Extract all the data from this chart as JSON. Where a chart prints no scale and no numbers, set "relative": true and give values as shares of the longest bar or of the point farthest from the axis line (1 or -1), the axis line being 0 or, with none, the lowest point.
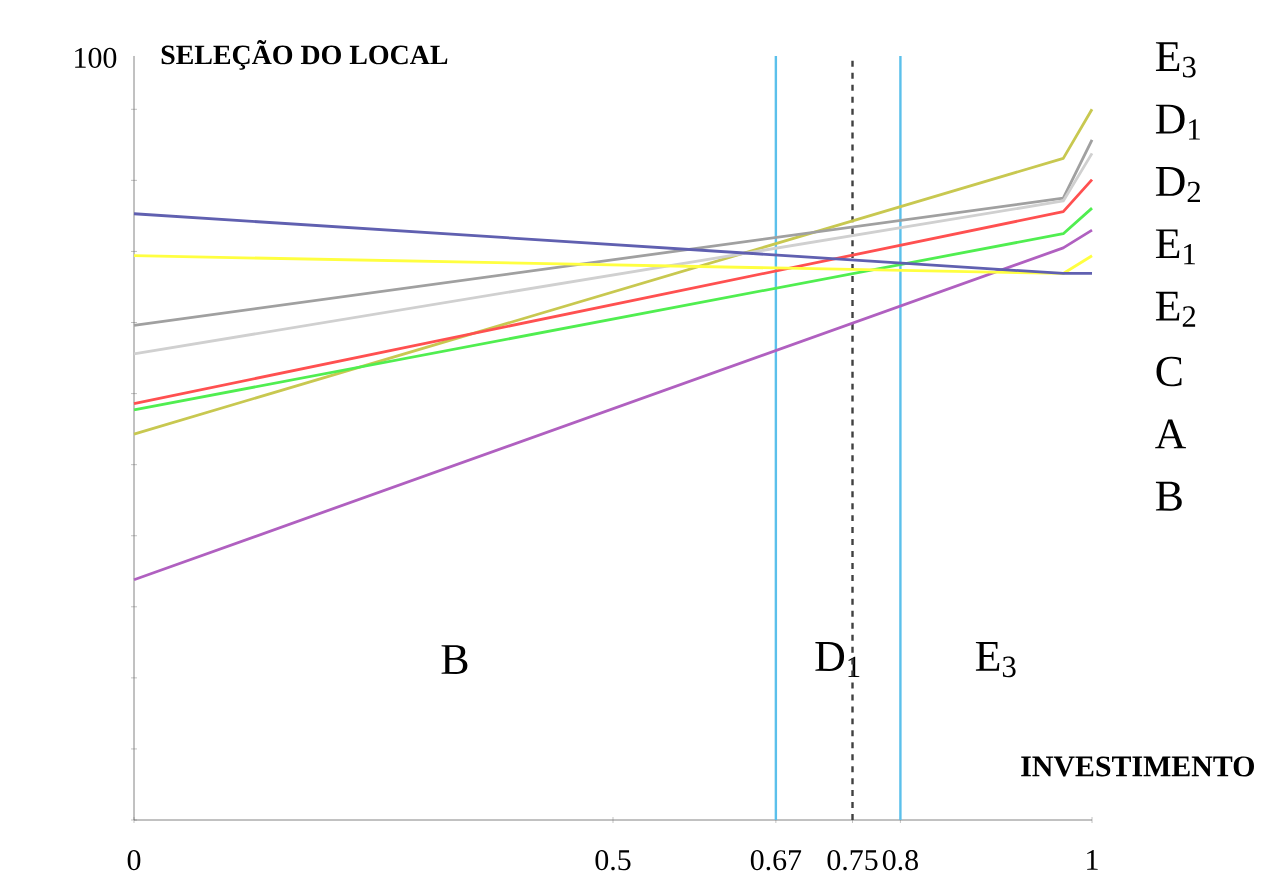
{
  "chart_data": {
    "type": "line",
    "title": "SELEÇÃO DO LOCAL",
    "xlabel": "INVESTIMENTO",
    "relative": true,
    "xlim": [
      0,
      1
    ],
    "xticks": [
      0,
      0.5,
      0.67,
      0.75,
      0.8,
      1
    ],
    "series": [
      {
        "name": "E$_{3}$",
        "color": "#c8c850",
        "x": [
          0,
          0.97,
          1
        ],
        "values": [
          0.543,
          0.931,
          1
        ]
      },
      {
        "name": "D$_{1}$",
        "color": "#a0a0a0",
        "x": [
          0,
          0.97,
          1
        ],
        "values": [
          0.696,
          0.875,
          0.957
        ]
      },
      {
        "name": "D$_{2}$",
        "color": "#d0d0d0",
        "x": [
          0,
          0.97,
          1
        ],
        "values": [
          0.656,
          0.871,
          0.938
        ]
      },
      {
        "name": "E$_{1}$",
        "color": "#ff5050",
        "x": [
          0,
          0.97,
          1
        ],
        "values": [
          0.586,
          0.856,
          0.901
        ]
      },
      {
        "name": "E$_{2}$",
        "color": "#50ee50",
        "x": [
          0,
          0.97,
          1
        ],
        "values": [
          0.577,
          0.825,
          0.861
        ]
      },
      {
        "name": "C",
        "color": "#b060c0",
        "x": [
          0,
          0.97,
          1
        ],
        "values": [
          0.338,
          0.805,
          0.83
        ]
      },
      {
        "name": "A",
        "color": "#ffff40",
        "x": [
          0,
          0.97,
          1
        ],
        "values": [
          0.794,
          0.769,
          0.794
        ]
      },
      {
        "name": "B",
        "color": "#6060b0",
        "x": [
          0,
          0.97,
          1
        ],
        "values": [
          0.853,
          0.769,
          0.769
        ]
      }
    ],
    "ref_lines": [
      {
        "axis": "x",
        "value": 0.67,
        "color": "#5bc0eb",
        "line_style": "solid"
      },
      {
        "axis": "x",
        "value": 0.75,
        "color": "#404040",
        "line_style": "dashed"
      },
      {
        "axis": "x",
        "value": 0.8,
        "color": "#5bc0eb",
        "line_style": "solid"
      }
    ],
    "annotations": [
      "100",
      "B",
      "D$_{1}$",
      "E$_{3}$"
    ],
    "grid": false,
    "marker": "none",
    "line_style": "solid"
  }
}
